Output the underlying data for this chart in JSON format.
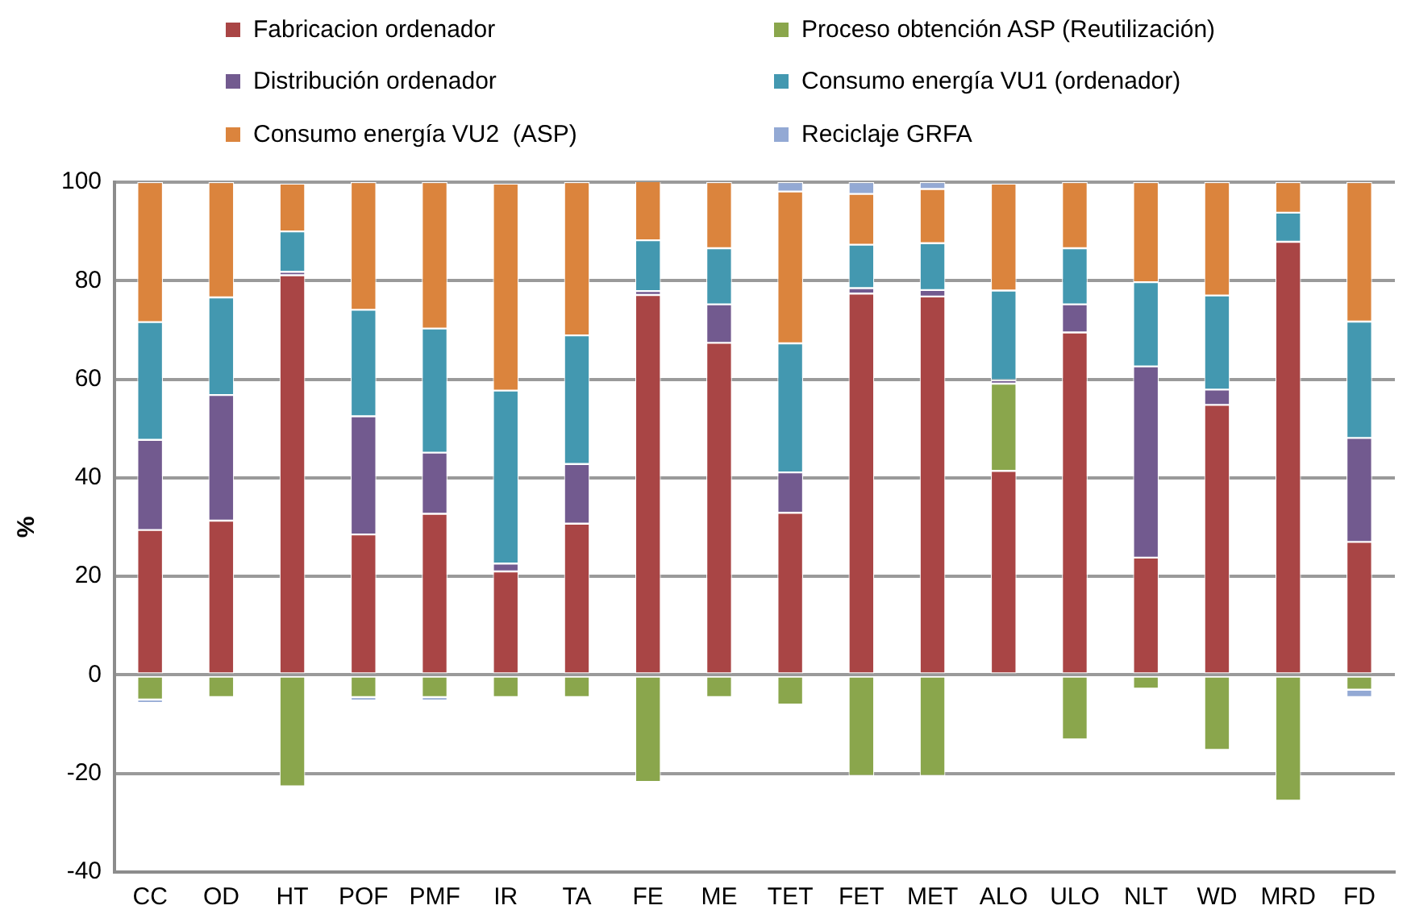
{
  "chart_data": {
    "type": "bar",
    "stacked": true,
    "ylabel": "%",
    "ylim": [
      -40,
      100
    ],
    "yticks": [
      -40,
      -20,
      0,
      20,
      40,
      60,
      80,
      100
    ],
    "grid": "y",
    "legend": "top",
    "categories": [
      "CC",
      "OD",
      "HT",
      "POF",
      "PMF",
      "IR",
      "TA",
      "FE",
      "ME",
      "TET",
      "FET",
      "MET",
      "ALO",
      "ULO",
      "NLT",
      "WD",
      "MRD",
      "FD"
    ],
    "series": [
      {
        "name": "Fabricacion ordenador",
        "color": "#a94545",
        "values": [
          29.4,
          31.3,
          81.1,
          28.5,
          32.7,
          21.0,
          30.7,
          77.1,
          67.4,
          32.9,
          77.4,
          76.8,
          41.4,
          69.5,
          23.8,
          54.8,
          87.9,
          27.0
        ]
      },
      {
        "name": "Proceso obtención ASP (Reutilización)",
        "color": "#8aa64c",
        "values": [
          -5,
          -4.5,
          -22.6,
          -4.5,
          -4.5,
          -4.5,
          -4.5,
          -21.7,
          -4.5,
          -6,
          -20.5,
          -20.5,
          17.7,
          -13.1,
          -2.8,
          -15.2,
          -25.5,
          -3
        ]
      },
      {
        "name": "Distribución ordenador",
        "color": "#725a8f",
        "values": [
          18.3,
          25.5,
          0.7,
          24,
          12.4,
          1.6,
          12.1,
          0.8,
          7.8,
          8.2,
          1.1,
          1.3,
          0.7,
          5.7,
          38.8,
          3.1,
          null,
          21.1
        ]
      },
      {
        "name": "Consumo energía VU1 (ordenador)",
        "color": "#4398b0",
        "values": [
          23.9,
          19.8,
          8.2,
          21.6,
          25.2,
          35.1,
          26.1,
          10.3,
          11.4,
          26.2,
          8.8,
          9.5,
          18.2,
          11.4,
          17.1,
          19.1,
          5.9,
          23.6
        ]
      },
      {
        "name": "Consumo energía VU2  (ASP)",
        "color": "#db843d",
        "values": [
          28.4,
          23.4,
          9.7,
          25.9,
          29.7,
          42.0,
          31.1,
          12.1,
          13.4,
          30.8,
          10.3,
          11,
          21.7,
          13.4,
          20.3,
          23,
          6.2,
          28.3
        ]
      },
      {
        "name": "Reciclaje GRFA",
        "color": "#93a9d4",
        "values": [
          -0.7,
          null,
          null,
          -0.7,
          -0.7,
          null,
          null,
          null,
          null,
          1.9,
          2.4,
          1.4,
          null,
          null,
          null,
          null,
          null,
          -1.5
        ]
      }
    ]
  }
}
